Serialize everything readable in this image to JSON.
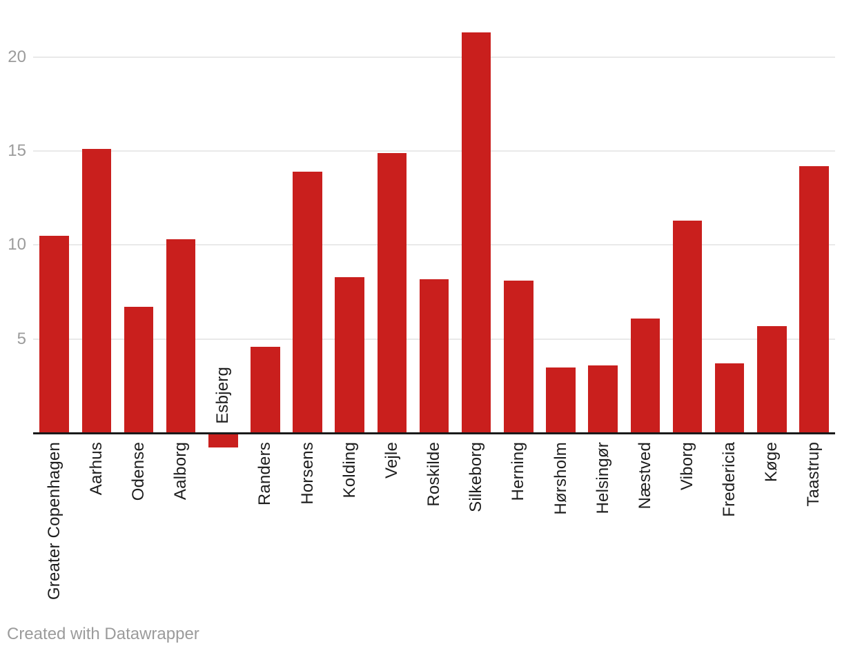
{
  "chart_data": {
    "type": "bar",
    "categories": [
      "Greater Copenhagen",
      "Aarhus",
      "Odense",
      "Aalborg",
      "Esbjerg",
      "Randers",
      "Horsens",
      "Kolding",
      "Vejle",
      "Roskilde",
      "Silkeborg",
      "Herning",
      "Hørsholm",
      "Helsingør",
      "Næstved",
      "Viborg",
      "Fredericia",
      "Køge",
      "Taastrup"
    ],
    "values": [
      10.5,
      15.1,
      6.7,
      10.3,
      -0.7,
      4.6,
      13.9,
      8.3,
      14.9,
      8.2,
      21.3,
      8.1,
      3.5,
      3.6,
      6.1,
      11.3,
      3.7,
      5.7,
      14.2
    ],
    "title": "",
    "xlabel": "",
    "ylabel": "",
    "yticks": [
      5,
      10,
      15,
      20
    ],
    "ylim": [
      -1.5,
      23
    ],
    "grid": true,
    "legend": "none"
  },
  "colors": {
    "bar": "#c91f1d",
    "gridline": "#e9e9e9",
    "axis_line": "#1a1a1a",
    "tick_label": "#9b9b9b",
    "category_label": "#1d1d1d",
    "footer_text": "#9b9b9b",
    "background": "#ffffff"
  },
  "footer": {
    "credit": "Created with Datawrapper"
  }
}
